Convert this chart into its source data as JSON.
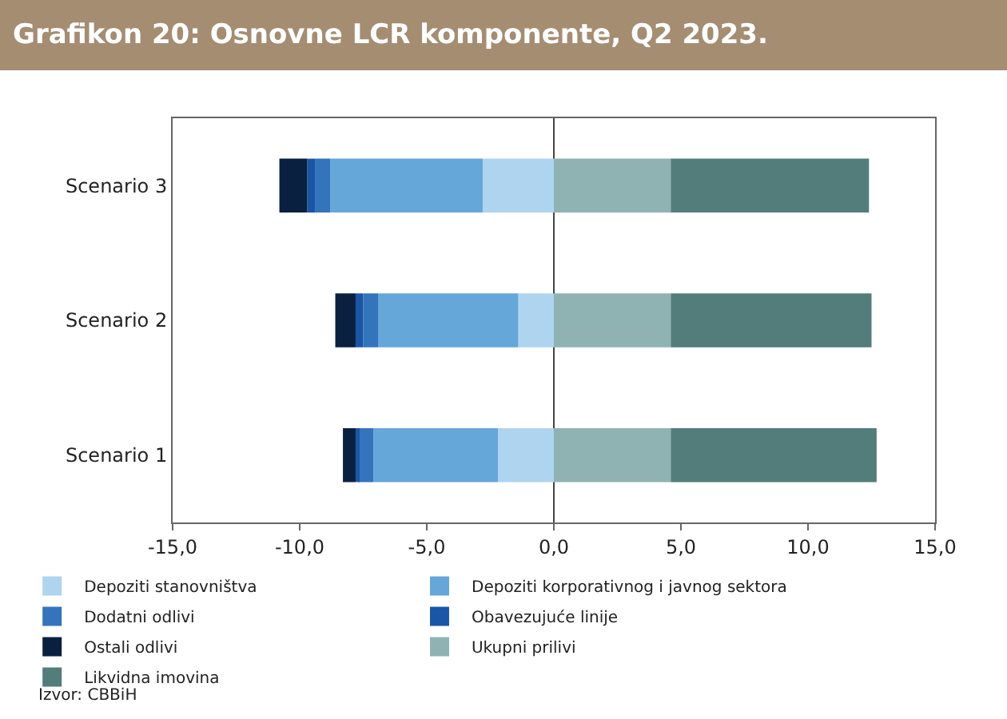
{
  "chart_data": {
    "type": "bar",
    "title": "Grafikon 20: Osnovne LCR komponente, Q2 2023.",
    "orientation": "horizontal",
    "stacked": true,
    "categories": [
      "Scenario 3",
      "Scenario 2",
      "Scenario 1"
    ],
    "series": [
      {
        "name": "Depoziti stanovništva",
        "color": "#aed4ef",
        "values": [
          -2.8,
          -1.4,
          -2.2
        ]
      },
      {
        "name": "Depoziti korporativnog i javnog sektora",
        "color": "#66a7da",
        "values": [
          -6.0,
          -5.5,
          -4.9
        ]
      },
      {
        "name": "Dodatni odlivi",
        "color": "#3474bc",
        "values": [
          -0.6,
          -0.6,
          -0.6
        ]
      },
      {
        "name": "Obavezujuće linije",
        "color": "#1a56a6",
        "values": [
          -0.3,
          -0.3,
          -0.1
        ]
      },
      {
        "name": "Ostali odlivi",
        "color": "#0a2040",
        "values": [
          -1.1,
          -0.8,
          -0.5
        ]
      },
      {
        "name": "Ukupni prilivi",
        "color": "#8fb3b2",
        "values": [
          4.6,
          4.6,
          4.6
        ]
      },
      {
        "name": "Likvidna imovina",
        "color": "#527d7b",
        "values": [
          7.8,
          7.9,
          8.1
        ]
      }
    ],
    "xlim": [
      -15,
      15
    ],
    "xticks": [
      {
        "value": -15,
        "label": "-15,0"
      },
      {
        "value": -10,
        "label": "-10,0"
      },
      {
        "value": -5,
        "label": "-5,0"
      },
      {
        "value": 0,
        "label": "0,0"
      },
      {
        "value": 5,
        "label": "5,0"
      },
      {
        "value": 10,
        "label": "10,0"
      },
      {
        "value": 15,
        "label": "15,0"
      }
    ],
    "legend": "bottom",
    "annotations": [
      "Izvor: CBBiH"
    ]
  }
}
